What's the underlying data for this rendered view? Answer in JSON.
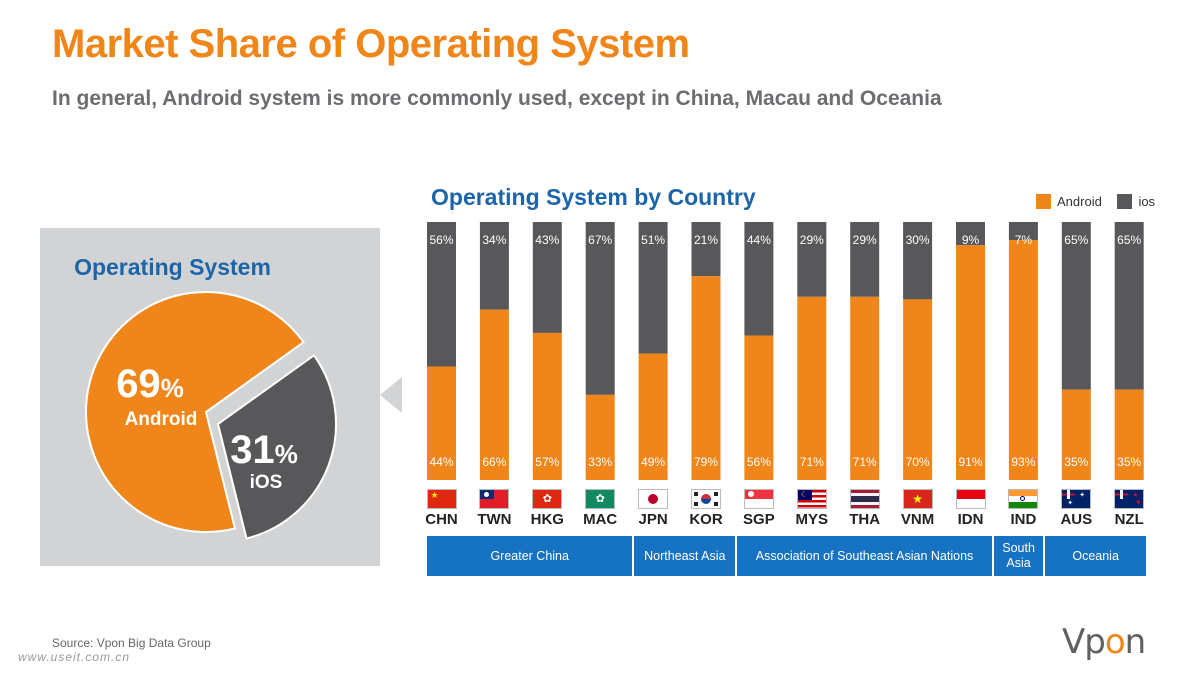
{
  "title": "Market Share of Operating System",
  "subtitle": "In general, Android system is more commonly used, except in China, Macau and Oceania",
  "colors": {
    "android": "#f08519",
    "ios": "#58585b",
    "accent": "#1c65a8",
    "region": "#1672c2",
    "panel": "#d2d3d5"
  },
  "pie": {
    "title": "Operating System",
    "slices": [
      {
        "value": 69,
        "pct_label": "69",
        "pct_sign": "%",
        "name": "Android"
      },
      {
        "value": 31,
        "pct_label": "31",
        "pct_sign": "%",
        "name": "iOS"
      }
    ]
  },
  "chart_data": {
    "type": "bar",
    "stacked": true,
    "title": "Operating System by Country",
    "legend_position": "top-right",
    "ylim": [
      0,
      100
    ],
    "categories": [
      "CHN",
      "TWN",
      "HKG",
      "MAC",
      "JPN",
      "KOR",
      "SGP",
      "MYS",
      "THA",
      "VNM",
      "IDN",
      "IND",
      "AUS",
      "NZL"
    ],
    "series": [
      {
        "name": "Android",
        "values": [
          44,
          66,
          57,
          33,
          49,
          79,
          56,
          71,
          71,
          70,
          91,
          93,
          35,
          35
        ],
        "labels": [
          "44%",
          "66%",
          "57%",
          "33%",
          "49%",
          "79%",
          "56%",
          "71%",
          "71%",
          "70%",
          "91%",
          "93%",
          "35%",
          "35%"
        ]
      },
      {
        "name": "ios",
        "values": [
          56,
          34,
          43,
          67,
          51,
          21,
          44,
          29,
          29,
          30,
          9,
          7,
          65,
          65
        ],
        "labels": [
          "56%",
          "34%",
          "43%",
          "67%",
          "51%",
          "21%",
          "44%",
          "29%",
          "29%",
          "30%",
          "9%",
          "7%",
          "65%",
          "65%"
        ]
      }
    ],
    "regions": [
      {
        "label": "Greater China",
        "count": 4
      },
      {
        "label": "Northeast Asia",
        "count": 2
      },
      {
        "label": "Association of Southeast Asian Nations",
        "count": 5
      },
      {
        "label": "South Asia",
        "count": 1
      },
      {
        "label": "Oceania",
        "count": 2
      }
    ]
  },
  "flags": [
    "china-flag",
    "taiwan-flag",
    "hong-kong-flag",
    "macau-flag",
    "japan-flag",
    "korea-flag",
    "singapore-flag",
    "malaysia-flag",
    "thailand-flag",
    "vietnam-flag",
    "indonesia-flag",
    "india-flag",
    "australia-flag",
    "new-zealand-flag"
  ],
  "source": "Source: Vpon Big Data Group",
  "logo": {
    "main": "Vp",
    "accent": "o",
    "tail": "n"
  },
  "watermark": "www.useit.com.cn"
}
